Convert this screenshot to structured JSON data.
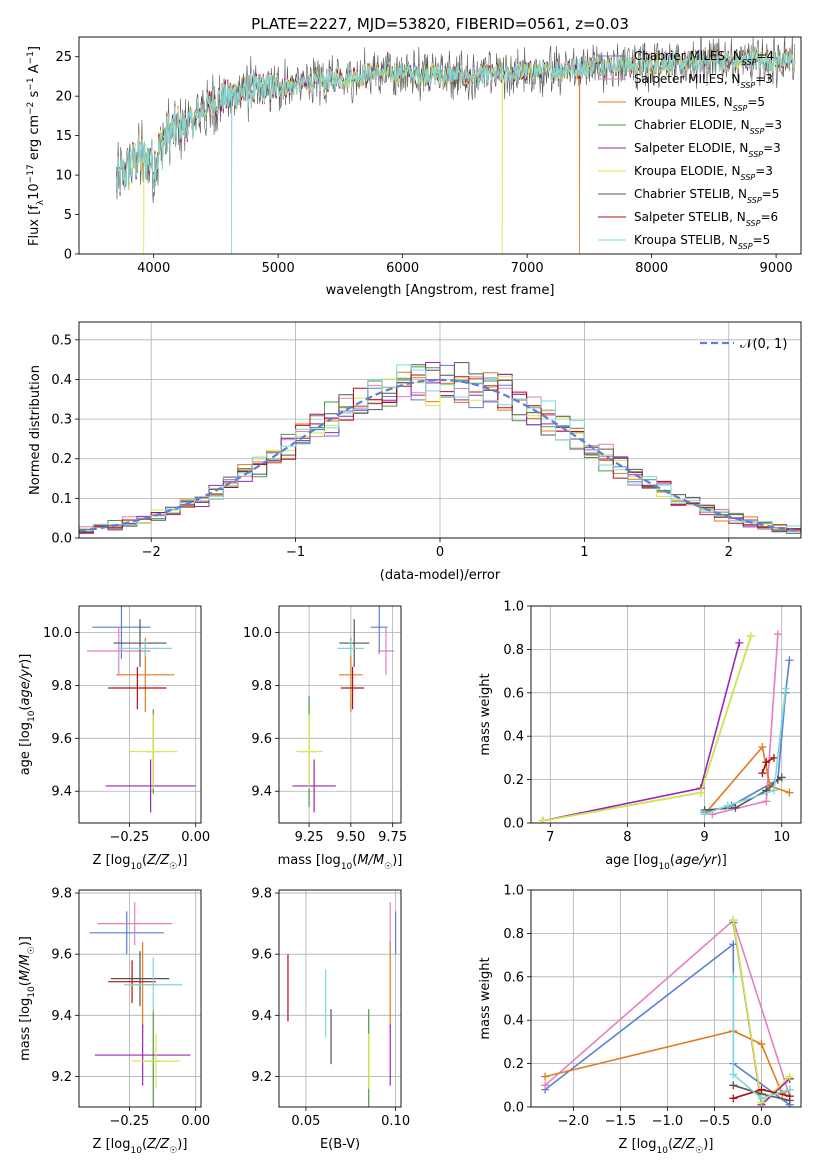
{
  "figure": {
    "title": "PLATE=2227, MJD=53820, FIBERID=0561, z=0.03"
  },
  "models": [
    {
      "name": "Chabrier MILES",
      "nssp": "4",
      "color": "#5a7fd6"
    },
    {
      "name": "Salpeter MILES",
      "nssp": "3",
      "color": "#e77fbf"
    },
    {
      "name": "Kroupa MILES",
      "nssp": "5",
      "color": "#e07b1f"
    },
    {
      "name": "Chabrier ELODIE",
      "nssp": "3",
      "color": "#4a9a4a"
    },
    {
      "name": "Salpeter ELODIE",
      "nssp": "3",
      "color": "#9b26b6"
    },
    {
      "name": "Kroupa ELODIE",
      "nssp": "3",
      "color": "#d7e84a"
    },
    {
      "name": "Chabrier STELIB",
      "nssp": "5",
      "color": "#555555"
    },
    {
      "name": "Salpeter STELIB",
      "nssp": "6",
      "color": "#b01010"
    },
    {
      "name": "Kroupa STELIB",
      "nssp": "5",
      "color": "#7dd8dc"
    }
  ],
  "chart_data": [
    {
      "id": "spectrum",
      "type": "line",
      "xlabel": "wavelength [Angstrom, rest frame]",
      "ylabel_parts": {
        "base": "Flux [f",
        "sub": "λ",
        "mid": "10",
        "sup1": "−17",
        "rest": " erg cm",
        "sup2": "−2",
        "rest2": " s",
        "sup3": "−1",
        "rest3": " A",
        "sup4": "−1",
        "end": "]"
      },
      "xlim": [
        3400,
        9200
      ],
      "ylim": [
        0,
        27.5
      ],
      "xticks": [
        4000,
        5000,
        6000,
        7000,
        8000,
        9000
      ],
      "yticks": [
        0,
        5,
        10,
        15,
        20,
        25
      ],
      "continuum": [
        [
          3700,
          9
        ],
        [
          3800,
          11
        ],
        [
          3900,
          12.5
        ],
        [
          4000,
          11.5
        ],
        [
          4100,
          15
        ],
        [
          4200,
          16
        ],
        [
          4300,
          16.5
        ],
        [
          4400,
          18.5
        ],
        [
          4500,
          19.5
        ],
        [
          4700,
          20.5
        ],
        [
          4900,
          21
        ],
        [
          5200,
          21.5
        ],
        [
          5400,
          22
        ],
        [
          5600,
          22.5
        ],
        [
          5800,
          23
        ],
        [
          6000,
          23
        ],
        [
          6500,
          22.5
        ],
        [
          7000,
          23
        ],
        [
          7400,
          23.5
        ],
        [
          7600,
          24
        ],
        [
          8000,
          24
        ],
        [
          8500,
          24.5
        ],
        [
          9000,
          24.5
        ],
        [
          9150,
          24.5
        ]
      ],
      "drops": [
        {
          "x": 3920,
          "series": "Kroupa ELODIE"
        },
        {
          "x": 4625,
          "series": "Kroupa STELIB"
        },
        {
          "x": 6800,
          "series": "Kroupa ELODIE"
        },
        {
          "x": 7420,
          "series": "Kroupa MILES"
        }
      ],
      "legend_position": "top-right"
    },
    {
      "id": "residuals",
      "type": "histogram",
      "xlabel": "(data-model)/error",
      "ylabel": "Normed distribution",
      "xlim": [
        -2.5,
        2.5
      ],
      "ylim": [
        0,
        0.545
      ],
      "xticks": [
        -2,
        -1,
        0,
        1,
        2
      ],
      "xtick_labels": [
        "−2",
        "−1",
        "0",
        "1",
        "2"
      ],
      "yticks": [
        0.0,
        0.1,
        0.2,
        0.3,
        0.4,
        0.5
      ],
      "ytick_labels": [
        "0.0",
        "0.1",
        "0.2",
        "0.3",
        "0.4",
        "0.5"
      ],
      "bin_width": 0.1,
      "reference": {
        "name": "𝒩(0, 1)",
        "type": "gaussian",
        "mean": 0,
        "sigma": 1,
        "color": "#5a7fd6",
        "style": "dashed"
      },
      "grid": true,
      "legend_position": "top-right"
    },
    {
      "id": "age-vs-Z",
      "type": "errorbar",
      "xlabel_parts": {
        "a": "Z [log",
        "sub": "10",
        "b": "(",
        "it": "Z/Z",
        "sub2": "☉",
        "c": ")]"
      },
      "ylabel_parts": {
        "a": "age  [log",
        "sub": "10",
        "b": "(",
        "it": "age/yr",
        "c": ")]"
      },
      "xlim": [
        -0.44,
        0.02
      ],
      "ylim": [
        9.28,
        10.1
      ],
      "xticks": [
        -0.25,
        0.0
      ],
      "xtick_labels": [
        "−0.25",
        "0.00"
      ],
      "yticks": [
        9.4,
        9.6,
        9.8,
        10.0
      ],
      "ytick_labels": [
        "9.4",
        "9.6",
        "9.8",
        "10.0"
      ],
      "grid": true,
      "points": [
        {
          "series": "Chabrier MILES",
          "x": -0.28,
          "xerr": 0.11,
          "y": 10.02,
          "yerr": 0.12
        },
        {
          "series": "Salpeter MILES",
          "x": -0.29,
          "xerr": 0.12,
          "y": 9.93,
          "yerr": 0.09
        },
        {
          "series": "Kroupa MILES",
          "x": -0.19,
          "xerr": 0.11,
          "y": 9.84,
          "yerr": 0.14
        },
        {
          "series": "Chabrier ELODIE",
          "x": -0.16,
          "xerr": 0.03,
          "y": 9.55,
          "yerr": 0.16
        },
        {
          "series": "Salpeter ELODIE",
          "x": -0.17,
          "xerr": 0.17,
          "y": 9.42,
          "yerr": 0.1
        },
        {
          "series": "Kroupa ELODIE",
          "x": -0.16,
          "xerr": 0.09,
          "y": 9.55,
          "yerr": 0.14
        },
        {
          "series": "Chabrier STELIB",
          "x": -0.21,
          "xerr": 0.1,
          "y": 9.96,
          "yerr": 0.09
        },
        {
          "series": "Salpeter STELIB",
          "x": -0.22,
          "xerr": 0.11,
          "y": 9.79,
          "yerr": 0.08
        },
        {
          "series": "Kroupa STELIB",
          "x": -0.19,
          "xerr": 0.1,
          "y": 9.94,
          "yerr": 0.03
        }
      ]
    },
    {
      "id": "age-vs-mass",
      "type": "errorbar",
      "xlabel_parts": {
        "a": "mass [log",
        "sub": "10",
        "b": "(",
        "it": "M/M",
        "sub2": "☉",
        "c": ")]"
      },
      "xlim": [
        9.07,
        9.8
      ],
      "ylim": [
        9.28,
        10.1
      ],
      "xticks": [
        9.25,
        9.5,
        9.75
      ],
      "xtick_labels": [
        "9.25",
        "9.50",
        "9.75"
      ],
      "yticks": [
        9.4,
        9.6,
        9.8,
        10.0
      ],
      "ytick_labels": [
        "9.4",
        "9.6",
        "9.8",
        "10.0"
      ],
      "grid": true,
      "points": [
        {
          "series": "Chabrier MILES",
          "x": 9.67,
          "xerr": 0.05,
          "y": 10.02,
          "yerr": 0.1
        },
        {
          "series": "Salpeter MILES",
          "x": 9.71,
          "xerr": 0.05,
          "y": 9.93,
          "yerr": 0.09
        },
        {
          "series": "Kroupa MILES",
          "x": 9.5,
          "xerr": 0.07,
          "y": 9.84,
          "yerr": 0.14
        },
        {
          "series": "Chabrier ELODIE",
          "x": 9.25,
          "xerr": 0.05,
          "y": 9.55,
          "yerr": 0.21
        },
        {
          "series": "Salpeter ELODIE",
          "x": 9.28,
          "xerr": 0.13,
          "y": 9.42,
          "yerr": 0.1
        },
        {
          "series": "Kroupa ELODIE",
          "x": 9.25,
          "xerr": 0.08,
          "y": 9.55,
          "yerr": 0.14
        },
        {
          "series": "Chabrier STELIB",
          "x": 9.52,
          "xerr": 0.09,
          "y": 9.96,
          "yerr": 0.09
        },
        {
          "series": "Salpeter STELIB",
          "x": 9.51,
          "xerr": 0.07,
          "y": 9.79,
          "yerr": 0.08
        },
        {
          "series": "Kroupa STELIB",
          "x": 9.5,
          "xerr": 0.08,
          "y": 9.94,
          "yerr": 0.03
        }
      ]
    },
    {
      "id": "mass-weight-vs-age",
      "type": "line",
      "xlabel_parts": {
        "a": "age  [log",
        "sub": "10",
        "b": "(",
        "it": "age/yr",
        "c": ")]"
      },
      "ylabel": "mass weight",
      "xlim": [
        6.75,
        10.25
      ],
      "ylim": [
        0,
        1
      ],
      "xticks": [
        7,
        8,
        9,
        10
      ],
      "yticks": [
        0.0,
        0.2,
        0.4,
        0.6,
        0.8,
        1.0
      ],
      "ytick_labels": [
        "0.0",
        "0.2",
        "0.4",
        "0.6",
        "0.8",
        "1.0"
      ],
      "grid": true,
      "series": [
        {
          "name": "Chabrier MILES",
          "points": [
            [
              9.0,
              0.05
            ],
            [
              9.35,
              0.08
            ],
            [
              9.95,
              0.2
            ],
            [
              10.05,
              0.6
            ],
            [
              10.1,
              0.75
            ]
          ]
        },
        {
          "name": "Salpeter MILES",
          "points": [
            [
              9.1,
              0.04
            ],
            [
              9.8,
              0.1
            ],
            [
              9.95,
              0.87
            ]
          ]
        },
        {
          "name": "Kroupa MILES",
          "points": [
            [
              9.0,
              0.04
            ],
            [
              9.75,
              0.35
            ],
            [
              9.85,
              0.17
            ],
            [
              10.1,
              0.14
            ]
          ]
        },
        {
          "name": "Chabrier ELODIE",
          "points": [
            [
              6.9,
              0.01
            ],
            [
              8.95,
              0.14
            ],
            [
              9.6,
              0.86
            ]
          ]
        },
        {
          "name": "Salpeter ELODIE",
          "points": [
            [
              6.9,
              0.01
            ],
            [
              8.95,
              0.16
            ],
            [
              9.45,
              0.83
            ]
          ]
        },
        {
          "name": "Kroupa ELODIE",
          "points": [
            [
              6.9,
              0.01
            ],
            [
              8.95,
              0.14
            ],
            [
              9.6,
              0.86
            ]
          ]
        },
        {
          "name": "Chabrier STELIB",
          "points": [
            [
              9.0,
              0.06
            ],
            [
              9.4,
              0.07
            ],
            [
              9.8,
              0.15
            ],
            [
              9.95,
              0.2
            ],
            [
              10.0,
              0.21
            ]
          ]
        },
        {
          "name": "Salpeter STELIB",
          "points": [
            [
              9.75,
              0.23
            ],
            [
              9.8,
              0.28
            ],
            [
              9.9,
              0.3
            ]
          ]
        },
        {
          "name": "Kroupa STELIB",
          "points": [
            [
              9.0,
              0.04
            ],
            [
              9.3,
              0.08
            ],
            [
              9.9,
              0.15
            ],
            [
              10.05,
              0.62
            ]
          ]
        }
      ]
    },
    {
      "id": "mass-vs-Z",
      "type": "errorbar",
      "xlabel_parts": {
        "a": "Z [log",
        "sub": "10",
        "b": "(",
        "it": "Z/Z",
        "sub2": "☉",
        "c": ")]"
      },
      "ylabel_parts": {
        "a": "mass [log",
        "sub": "10",
        "b": "(",
        "it": "M/M",
        "sub2": "☉",
        "c": ")]"
      },
      "xlim": [
        -0.44,
        0.02
      ],
      "ylim": [
        9.1,
        9.81
      ],
      "xticks": [
        -0.25,
        0.0
      ],
      "xtick_labels": [
        "−0.25",
        "0.00"
      ],
      "yticks": [
        9.2,
        9.4,
        9.6,
        9.8
      ],
      "ytick_labels": [
        "9.2",
        "9.4",
        "9.6",
        "9.8"
      ],
      "grid": true,
      "points": [
        {
          "series": "Chabrier MILES",
          "x": -0.26,
          "xerr": 0.14,
          "y": 9.67,
          "yerr": 0.07
        },
        {
          "series": "Salpeter MILES",
          "x": -0.23,
          "xerr": 0.14,
          "y": 9.7,
          "yerr": 0.07
        },
        {
          "series": "Kroupa MILES",
          "x": -0.2,
          "xerr": 0.05,
          "y": 9.5,
          "yerr": 0.14
        },
        {
          "series": "Chabrier ELODIE",
          "x": -0.16,
          "xerr": 0.03,
          "y": 9.25,
          "yerr": 0.17
        },
        {
          "series": "Salpeter ELODIE",
          "x": -0.2,
          "xerr": 0.18,
          "y": 9.27,
          "yerr": 0.1
        },
        {
          "series": "Kroupa ELODIE",
          "x": -0.15,
          "xerr": 0.09,
          "y": 9.25,
          "yerr": 0.09
        },
        {
          "series": "Chabrier STELIB",
          "x": -0.21,
          "xerr": 0.11,
          "y": 9.52,
          "yerr": 0.09
        },
        {
          "series": "Salpeter STELIB",
          "x": -0.24,
          "xerr": 0.09,
          "y": 9.51,
          "yerr": 0.07
        },
        {
          "series": "Kroupa STELIB",
          "x": -0.16,
          "xerr": 0.11,
          "y": 9.5,
          "yerr": 0.09
        }
      ]
    },
    {
      "id": "mass-vs-ebv",
      "type": "errorbar",
      "xlabel": "E(B-V)",
      "xlim": [
        0.035,
        0.103
      ],
      "ylim": [
        9.1,
        9.81
      ],
      "xticks": [
        0.05,
        0.1
      ],
      "xtick_labels": [
        "0.05",
        "0.10"
      ],
      "yticks": [
        9.2,
        9.4,
        9.6,
        9.8
      ],
      "ytick_labels": [
        "9.2",
        "9.4",
        "9.6",
        "9.8"
      ],
      "grid": true,
      "points": [
        {
          "series": "Chabrier MILES",
          "x": 0.1,
          "xerr": 0,
          "y": 9.67,
          "yerr": 0.07
        },
        {
          "series": "Salpeter MILES",
          "x": 0.097,
          "xerr": 0,
          "y": 9.7,
          "yerr": 0.07
        },
        {
          "series": "Kroupa MILES",
          "x": 0.097,
          "xerr": 0,
          "y": 9.5,
          "yerr": 0.14
        },
        {
          "series": "Chabrier ELODIE",
          "x": 0.085,
          "xerr": 0,
          "y": 9.25,
          "yerr": 0.17
        },
        {
          "series": "Salpeter ELODIE",
          "x": 0.097,
          "xerr": 0,
          "y": 9.27,
          "yerr": 0.1
        },
        {
          "series": "Kroupa ELODIE",
          "x": 0.085,
          "xerr": 0,
          "y": 9.25,
          "yerr": 0.09
        },
        {
          "series": "Chabrier STELIB",
          "x": 0.064,
          "xerr": 0,
          "y": 9.33,
          "yerr": 0.09
        },
        {
          "series": "Salpeter STELIB",
          "x": 0.04,
          "xerr": 0,
          "y": 9.49,
          "yerr": 0.11
        },
        {
          "series": "Kroupa STELIB",
          "x": 0.061,
          "xerr": 0,
          "y": 9.44,
          "yerr": 0.11
        }
      ]
    },
    {
      "id": "mass-weight-vs-Z",
      "type": "line",
      "xlabel_parts": {
        "a": "Z [log",
        "sub": "10",
        "b": "(",
        "it": "Z/Z",
        "sub2": "☉",
        "c": ")]"
      },
      "ylabel": "mass weight",
      "xlim": [
        -2.45,
        0.42
      ],
      "ylim": [
        0,
        1
      ],
      "xticks": [
        -2.0,
        -1.5,
        -1.0,
        -0.5,
        0.0
      ],
      "xtick_labels": [
        "−2.0",
        "−1.5",
        "−1.0",
        "−0.5",
        "0.0"
      ],
      "yticks": [
        0.0,
        0.2,
        0.4,
        0.6,
        0.8,
        1.0
      ],
      "ytick_labels": [
        "0.0",
        "0.2",
        "0.4",
        "0.6",
        "0.8",
        "1.0"
      ],
      "grid": true,
      "series": [
        {
          "name": "Chabrier MILES",
          "points": [
            [
              -2.3,
              0.08
            ],
            [
              -0.3,
              0.75
            ],
            [
              -0.3,
              0.2
            ],
            [
              0.3,
              0.01
            ]
          ]
        },
        {
          "name": "Salpeter MILES",
          "points": [
            [
              -2.3,
              0.1
            ],
            [
              -0.3,
              0.86
            ],
            [
              0.3,
              0.05
            ]
          ]
        },
        {
          "name": "Kroupa MILES",
          "points": [
            [
              -2.3,
              0.14
            ],
            [
              -0.3,
              0.35
            ],
            [
              0.0,
              0.29
            ],
            [
              0.22,
              0.06
            ],
            [
              0.3,
              0.08
            ]
          ]
        },
        {
          "name": "Chabrier ELODIE",
          "points": [
            [
              -0.3,
              0.85
            ],
            [
              0.0,
              0.02
            ],
            [
              0.3,
              0.13
            ]
          ]
        },
        {
          "name": "Salpeter ELODIE",
          "points": [
            [
              -0.3,
              0.86
            ],
            [
              0.0,
              0.01
            ],
            [
              0.3,
              0.13
            ]
          ]
        },
        {
          "name": "Kroupa ELODIE",
          "points": [
            [
              -0.3,
              0.86
            ],
            [
              0.0,
              0.02
            ],
            [
              0.3,
              0.14
            ]
          ]
        },
        {
          "name": "Chabrier STELIB",
          "points": [
            [
              -0.3,
              0.1
            ],
            [
              0.0,
              0.06
            ],
            [
              0.3,
              0.03
            ]
          ]
        },
        {
          "name": "Salpeter STELIB",
          "points": [
            [
              -0.3,
              0.04
            ],
            [
              0.0,
              0.08
            ],
            [
              0.3,
              0.05
            ]
          ]
        },
        {
          "name": "Kroupa STELIB",
          "points": [
            [
              -0.3,
              0.6
            ],
            [
              -0.3,
              0.15
            ],
            [
              0.0,
              0.04
            ],
            [
              0.3,
              0.08
            ]
          ]
        }
      ]
    }
  ]
}
